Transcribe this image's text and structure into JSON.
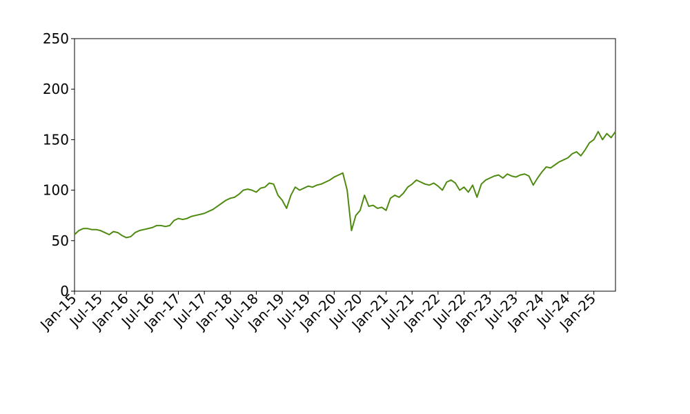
{
  "chart_data": {
    "type": "line",
    "color": "#4f8a10",
    "x": [
      "2015-01",
      "2015-02",
      "2015-03",
      "2015-04",
      "2015-05",
      "2015-06",
      "2015-07",
      "2015-08",
      "2015-09",
      "2015-10",
      "2015-11",
      "2015-12",
      "2016-01",
      "2016-02",
      "2016-03",
      "2016-04",
      "2016-05",
      "2016-06",
      "2016-07",
      "2016-08",
      "2016-09",
      "2016-10",
      "2016-11",
      "2016-12",
      "2017-01",
      "2017-02",
      "2017-03",
      "2017-04",
      "2017-05",
      "2017-06",
      "2017-07",
      "2017-08",
      "2017-09",
      "2017-10",
      "2017-11",
      "2017-12",
      "2018-01",
      "2018-02",
      "2018-03",
      "2018-04",
      "2018-05",
      "2018-06",
      "2018-07",
      "2018-08",
      "2018-09",
      "2018-10",
      "2018-11",
      "2018-12",
      "2019-01",
      "2019-02",
      "2019-03",
      "2019-04",
      "2019-05",
      "2019-06",
      "2019-07",
      "2019-08",
      "2019-09",
      "2019-10",
      "2019-11",
      "2019-12",
      "2020-01",
      "2020-02",
      "2020-03",
      "2020-04",
      "2020-05",
      "2020-06",
      "2020-07",
      "2020-08",
      "2020-09",
      "2020-10",
      "2020-11",
      "2020-12",
      "2021-01",
      "2021-02",
      "2021-03",
      "2021-04",
      "2021-05",
      "2021-06",
      "2021-07",
      "2021-08",
      "2021-09",
      "2021-10",
      "2021-11",
      "2021-12",
      "2022-01",
      "2022-02",
      "2022-03",
      "2022-04",
      "2022-05",
      "2022-06",
      "2022-07",
      "2022-08",
      "2022-09",
      "2022-10",
      "2022-11",
      "2022-12",
      "2023-01",
      "2023-02",
      "2023-03",
      "2023-04",
      "2023-05",
      "2023-06",
      "2023-07",
      "2023-08",
      "2023-09",
      "2023-10",
      "2023-11",
      "2023-12",
      "2024-01",
      "2024-02",
      "2024-03",
      "2024-04",
      "2024-05",
      "2024-06",
      "2024-07",
      "2024-08",
      "2024-09",
      "2024-10",
      "2024-11",
      "2024-12",
      "2025-01",
      "2025-02",
      "2025-03",
      "2025-04",
      "2025-05",
      "2025-06"
    ],
    "values": [
      56,
      60,
      62,
      62,
      61,
      61,
      60,
      58,
      56,
      59,
      58,
      55,
      53,
      54,
      58,
      60,
      61,
      62,
      63,
      65,
      65,
      64,
      65,
      70,
      72,
      71,
      72,
      74,
      75,
      76,
      77,
      79,
      81,
      84,
      87,
      90,
      92,
      93,
      96,
      100,
      101,
      100,
      98,
      102,
      103,
      107,
      106,
      95,
      90,
      82,
      95,
      103,
      100,
      102,
      104,
      103,
      105,
      106,
      108,
      110,
      113,
      115,
      117,
      100,
      60,
      75,
      80,
      95,
      84,
      85,
      82,
      83,
      80,
      92,
      95,
      93,
      97,
      103,
      106,
      110,
      108,
      106,
      105,
      107,
      104,
      100,
      108,
      110,
      107,
      100,
      103,
      98,
      105,
      93,
      106,
      110,
      112,
      114,
      115,
      112,
      116,
      114,
      113,
      115,
      116,
      114,
      105,
      112,
      118,
      123,
      122,
      125,
      128,
      130,
      132,
      136,
      138,
      134,
      140,
      147,
      150,
      158,
      150,
      156,
      152,
      158
    ],
    "xlim": [
      "2015-01",
      "2025-06"
    ],
    "xticks": [
      {
        "value": "2015-01",
        "label": "Jan-15"
      },
      {
        "value": "2015-07",
        "label": "Jul-15"
      },
      {
        "value": "2016-01",
        "label": "Jan-16"
      },
      {
        "value": "2016-07",
        "label": "Jul-16"
      },
      {
        "value": "2017-01",
        "label": "Jan-17"
      },
      {
        "value": "2017-07",
        "label": "Jul-17"
      },
      {
        "value": "2018-01",
        "label": "Jan-18"
      },
      {
        "value": "2018-07",
        "label": "Jul-18"
      },
      {
        "value": "2019-01",
        "label": "Jan-19"
      },
      {
        "value": "2019-07",
        "label": "Jul-19"
      },
      {
        "value": "2020-01",
        "label": "Jan-20"
      },
      {
        "value": "2020-07",
        "label": "Jul-20"
      },
      {
        "value": "2021-01",
        "label": "Jan-21"
      },
      {
        "value": "2021-07",
        "label": "Jul-21"
      },
      {
        "value": "2022-01",
        "label": "Jan-22"
      },
      {
        "value": "2022-07",
        "label": "Jul-22"
      },
      {
        "value": "2023-01",
        "label": "Jan-23"
      },
      {
        "value": "2023-07",
        "label": "Jul-23"
      },
      {
        "value": "2024-01",
        "label": "Jan-24"
      },
      {
        "value": "2024-07",
        "label": "Jul-24"
      },
      {
        "value": "2025-01",
        "label": "Jan-25"
      }
    ],
    "ylim": [
      0,
      250
    ],
    "yticks": [
      0,
      50,
      100,
      150,
      200,
      250
    ]
  }
}
